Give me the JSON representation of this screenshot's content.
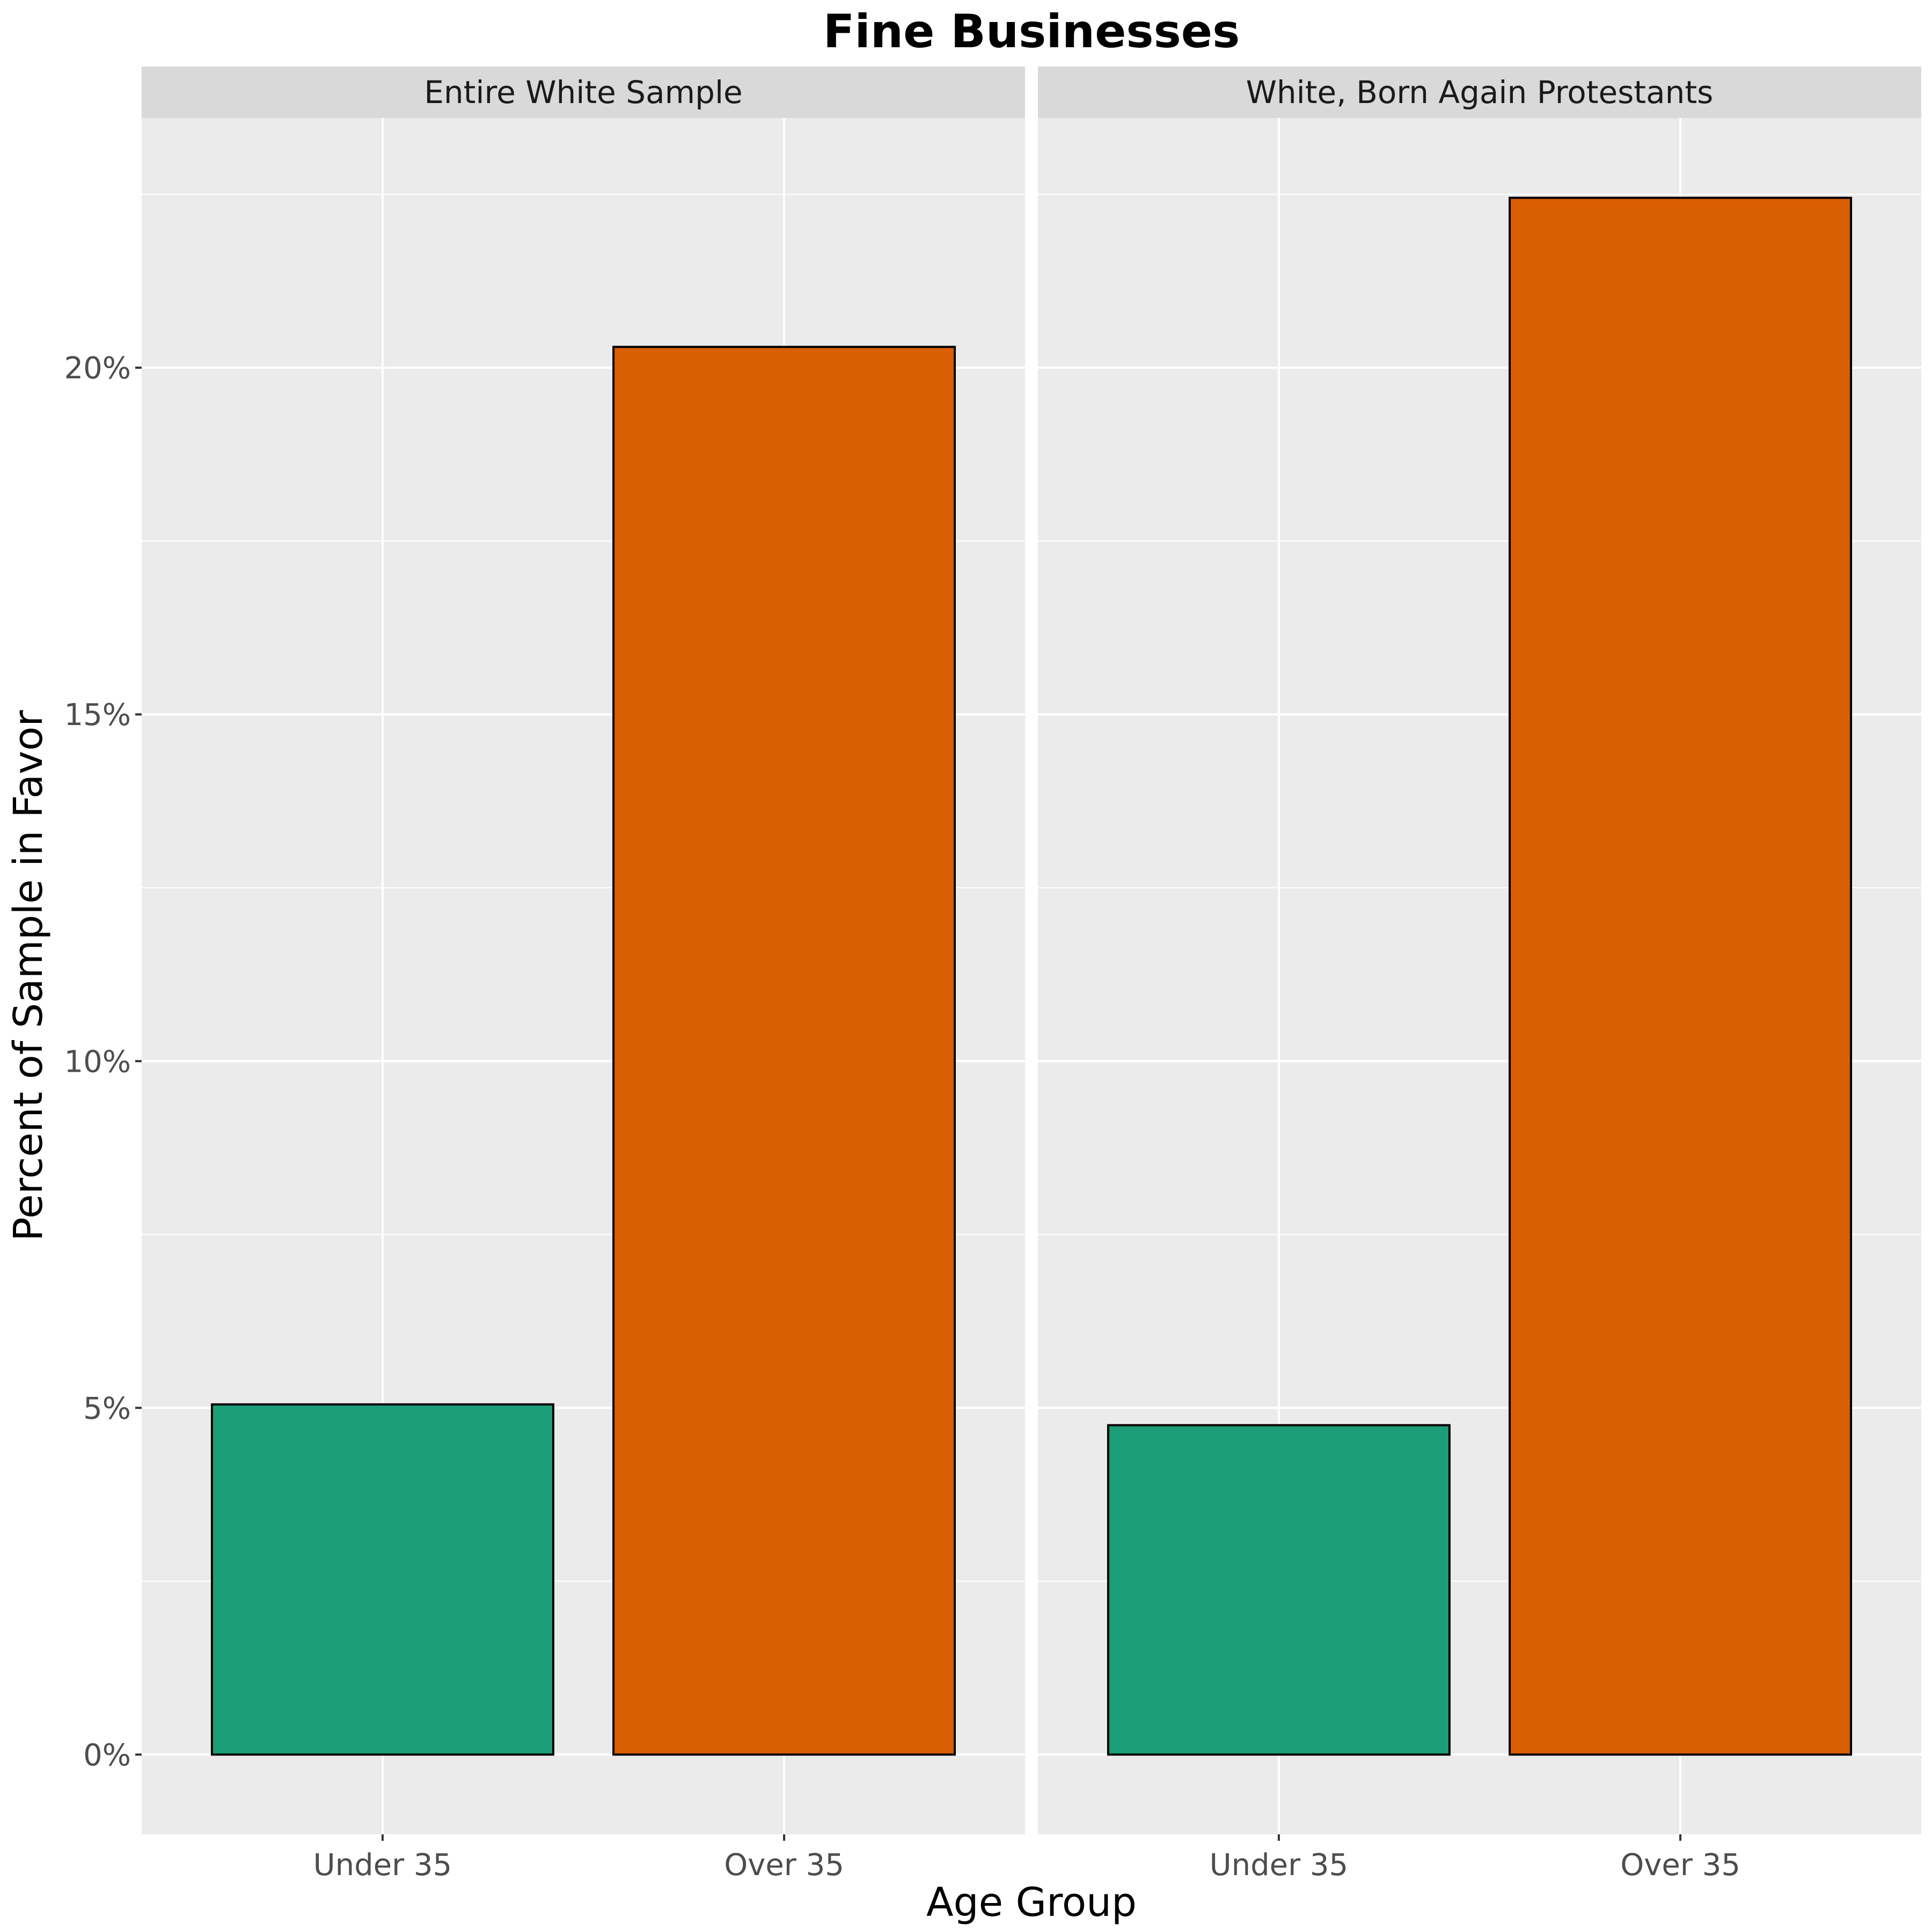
{
  "chart_data": {
    "type": "bar",
    "title": "Fine Businesses",
    "xlabel": "Age Group",
    "ylabel": "Percent of Sample in Favor",
    "categories": [
      "Under 35",
      "Over 35"
    ],
    "ylim": [
      -1.15,
      23.6
    ],
    "y_ticks": [
      0,
      5,
      10,
      15,
      20
    ],
    "y_tick_labels": [
      "0%",
      "5%",
      "10%",
      "15%",
      "20%"
    ],
    "grid": true,
    "panels": [
      {
        "strip": "Entire White Sample",
        "values": [
          5.05,
          20.3
        ]
      },
      {
        "strip": "White, Born Again Protestants",
        "values": [
          4.75,
          22.45
        ]
      }
    ],
    "colors": {
      "Under 35": "#1b9e77",
      "Over 35": "#d95f02",
      "panel_bg": "#ebebeb",
      "strip_bg": "#d9d9d9",
      "grid": "#ffffff",
      "bar_outline": "#000000"
    }
  }
}
